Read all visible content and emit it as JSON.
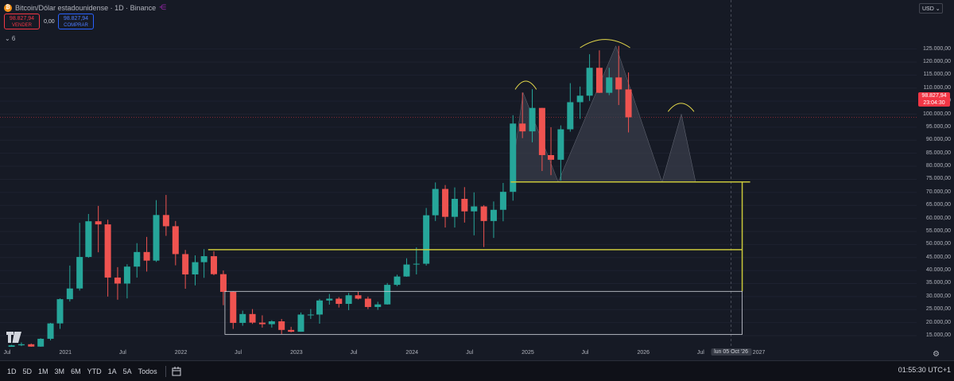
{
  "legend": {
    "symbol_logo": "₿",
    "title": "Bitcoin/Dólar estadounidense · 1D · Binance"
  },
  "trade": {
    "sell_price": "98.827,94",
    "sell_label": "VENDER",
    "spread": "0,00",
    "buy_price": "98.827,94",
    "buy_label": "COMPRAR"
  },
  "indicators_toggle": "⌄ 6",
  "currency": "USD ⌄",
  "price_scale": [
    "125.000,00",
    "120.000,00",
    "115.000,00",
    "110.000,00",
    "105.000,00",
    "100.000,00",
    "95.000,00",
    "90.000,00",
    "85.000,00",
    "80.000,00",
    "75.000,00",
    "70.000,00",
    "65.000,00",
    "60.000,00",
    "55.000,00",
    "50.000,00",
    "45.000,00",
    "40.000,00",
    "35.000,00",
    "30.000,00",
    "25.000,00",
    "20.000,00",
    "15.000,00"
  ],
  "current_price": {
    "value": "98.827,94",
    "countdown": "23:04:30"
  },
  "time_scale": [
    "Jul",
    "2021",
    "Jul",
    "2022",
    "Jul",
    "2023",
    "Jul",
    "2024",
    "Jul",
    "2025",
    "Jul",
    "2026",
    "Jul",
    "2027"
  ],
  "crosshair_date": "lun 05 Oct '26",
  "toolbar": {
    "timeframes": [
      "1D",
      "5D",
      "1M",
      "3M",
      "6M",
      "YTD",
      "1A",
      "5A",
      "Todos"
    ],
    "clock": "01:55:30 UTC+1"
  },
  "colors": {
    "background": "#161a25",
    "up": "#26a69a",
    "down": "#ef5350",
    "annotation_yellow": "#c8c63a",
    "pattern_fill": "#3a3e4b",
    "price_tag": "#f23645"
  },
  "chart_data": {
    "type": "candlestick",
    "symbol": "Bitcoin/Dólar estadounidense",
    "interval": "1D",
    "exchange": "Binance",
    "ylim": [
      15000,
      125000
    ],
    "x": [
      "2020-07",
      "2020-08",
      "2020-09",
      "2020-10",
      "2020-11",
      "2020-12",
      "2021-01",
      "2021-02",
      "2021-03",
      "2021-04",
      "2021-05",
      "2021-06",
      "2021-07",
      "2021-08",
      "2021-09",
      "2021-10",
      "2021-11",
      "2021-12",
      "2022-01",
      "2022-02",
      "2022-03",
      "2022-04",
      "2022-05",
      "2022-06",
      "2022-07",
      "2022-08",
      "2022-09",
      "2022-10",
      "2022-11",
      "2022-12",
      "2023-01",
      "2023-02",
      "2023-03",
      "2023-04",
      "2023-05",
      "2023-06",
      "2023-07",
      "2023-08",
      "2023-09",
      "2023-10",
      "2023-11",
      "2023-12",
      "2024-01",
      "2024-02",
      "2024-03",
      "2024-04",
      "2024-05",
      "2024-06",
      "2024-07",
      "2024-08",
      "2024-09",
      "2024-10",
      "2024-11",
      "2024-12",
      "2025-01",
      "2025-02",
      "2025-03",
      "2025-04",
      "2025-05",
      "2025-06",
      "2025-07",
      "2025-08",
      "2025-09",
      "2025-10",
      "2025-11"
    ],
    "close": [
      11300,
      11700,
      10800,
      13800,
      19700,
      29000,
      33100,
      45200,
      58900,
      57700,
      37300,
      35000,
      41500,
      47100,
      43800,
      61300,
      57000,
      46300,
      38500,
      43200,
      45500,
      38600,
      31800,
      19900,
      23300,
      20000,
      19400,
      20500,
      17200,
      16500,
      23100,
      23100,
      28500,
      29200,
      27200,
      30500,
      29200,
      26000,
      27000,
      34500,
      37700,
      42300,
      42600,
      61200,
      71300,
      60600,
      67500,
      62700,
      64600,
      59000,
      63300,
      70200,
      96400,
      93400,
      102400,
      84300,
      82500,
      94200,
      104600,
      107100,
      117800,
      108200,
      114100,
      109500,
      98800
    ],
    "high": [
      11500,
      12400,
      12000,
      14000,
      19900,
      29300,
      41900,
      58300,
      61700,
      64800,
      59500,
      41300,
      42400,
      50500,
      52900,
      67000,
      69000,
      59000,
      47900,
      45800,
      48200,
      47400,
      40000,
      31900,
      24600,
      25200,
      22800,
      20900,
      21400,
      18400,
      23900,
      25200,
      29100,
      31000,
      29800,
      31400,
      31800,
      30000,
      28000,
      35200,
      38400,
      44700,
      48900,
      64000,
      73800,
      72800,
      71900,
      72000,
      70000,
      65100,
      66500,
      73600,
      99600,
      108300,
      109600,
      102400,
      95000,
      95700,
      111900,
      110600,
      123000,
      124500,
      117800,
      126200,
      116000
    ],
    "low": [
      9000,
      11000,
      9800,
      10400,
      13200,
      17600,
      28100,
      32300,
      44900,
      47000,
      30000,
      28800,
      29300,
      37300,
      39600,
      43300,
      53300,
      42000,
      33000,
      34300,
      37200,
      38200,
      26700,
      17600,
      18800,
      19500,
      18100,
      18100,
      15500,
      16300,
      16500,
      21400,
      19600,
      26900,
      25800,
      24800,
      28900,
      25200,
      24900,
      26900,
      34000,
      37600,
      38500,
      41900,
      59000,
      56500,
      56500,
      58400,
      53500,
      49000,
      52500,
      58900,
      66800,
      90800,
      89200,
      78200,
      76600,
      74500,
      93300,
      98200,
      105100,
      108100,
      107300,
      103500,
      93000
    ]
  },
  "annotations": {
    "pattern": "head-and-shoulders",
    "neckline_price": 74000,
    "level_high_price": 74000,
    "level_mid_price": 48000,
    "range_box": {
      "top_price": 32000,
      "bottom_price": 15500
    }
  }
}
